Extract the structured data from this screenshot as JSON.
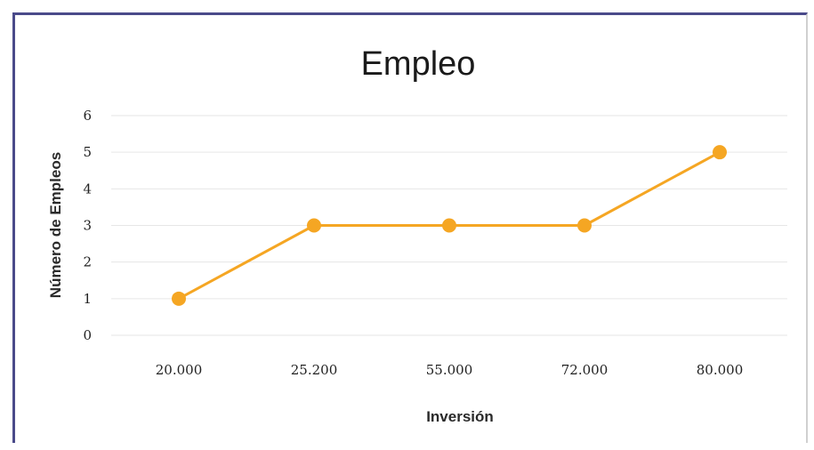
{
  "chart_data": {
    "type": "line",
    "title": "Empleo",
    "xlabel": "Inversión",
    "ylabel": "Número de Empleos",
    "categories": [
      "20.000",
      "25.200",
      "55.000",
      "72.000",
      "80.000"
    ],
    "series": [
      {
        "values": [
          1,
          3,
          3,
          3,
          5
        ],
        "color": "#f5a623"
      }
    ],
    "ylim": [
      0,
      6
    ],
    "yticks": [
      "0",
      "1",
      "2",
      "3",
      "4",
      "5",
      "6"
    ],
    "grid": true,
    "legend": "none"
  }
}
